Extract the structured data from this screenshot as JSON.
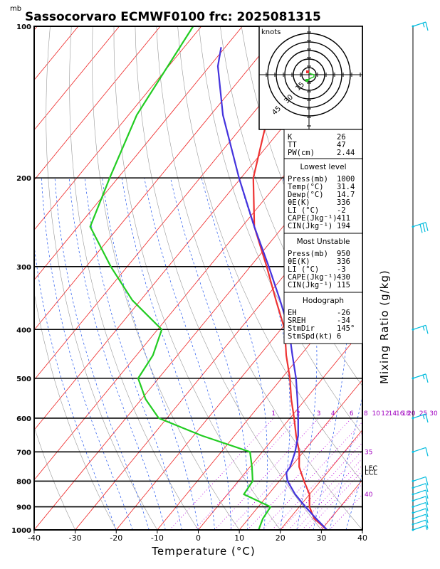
{
  "header": {
    "unit_label": "mb",
    "title": "Sassocorvaro ECMWF0100 frc: 2025081315"
  },
  "axes": {
    "xlabel": "Temperature (°C)",
    "xticks": [
      -40,
      -30,
      -20,
      -10,
      0,
      10,
      20,
      30,
      40
    ],
    "pressure_levels_ticks": [
      100,
      200,
      300,
      400,
      500,
      600,
      700,
      800,
      900,
      1000
    ],
    "mixing_ratio_label": "Mixing Ratio (g/kg)"
  },
  "mixing_ratio_lines": [
    {
      "label": "1",
      "t": -4
    },
    {
      "label": "2",
      "t": 2
    },
    {
      "label": "3",
      "t": 7
    },
    {
      "label": "4",
      "t": 10.5
    },
    {
      "label": "6",
      "t": 15
    },
    {
      "label": "8",
      "t": 18.5
    },
    {
      "label": "10",
      "t": 21
    },
    {
      "label": "12",
      "t": 23.2
    },
    {
      "label": "14",
      "t": 25
    },
    {
      "label": "16",
      "t": 26.8
    },
    {
      "label": "18",
      "t": 28.3
    },
    {
      "label": "20",
      "t": 29.6
    },
    {
      "label": "25",
      "t": 32.5
    },
    {
      "label": "30",
      "t": 35
    }
  ],
  "pseudo_adiabat_labels": [
    {
      "label": "35",
      "p": 700
    },
    {
      "label": "40",
      "p": 850
    }
  ],
  "lcl_labels": [
    {
      "label": "LFC",
      "p": 755
    },
    {
      "label": "LCL",
      "p": 770
    }
  ],
  "hodograph": {
    "units_label": "knots",
    "ring_labels": [
      "15",
      "30",
      "45"
    ]
  },
  "indices": {
    "top": [
      {
        "name": "K",
        "value": "26"
      },
      {
        "name": "TT",
        "value": "47"
      },
      {
        "name": "PW(cm)",
        "value": "2.44"
      }
    ],
    "lowest_level": {
      "header": "Lowest level",
      "rows": [
        {
          "name": "Press(mb)",
          "value": "1000"
        },
        {
          "name": "Temp(°C)",
          "value": "31.4"
        },
        {
          "name": "Dewp(°C)",
          "value": "14.7"
        },
        {
          "name": "θE(K)",
          "value": "336"
        },
        {
          "name": "LI (°C)",
          "value": "-2"
        },
        {
          "name": "CAPE(Jkg⁻¹)",
          "value": "411"
        },
        {
          "name": "CIN(Jkg⁻¹)",
          "value": "194"
        }
      ]
    },
    "most_unstable": {
      "header": "Most Unstable",
      "rows": [
        {
          "name": "Press(mb)",
          "value": "950"
        },
        {
          "name": "θE(K)",
          "value": "336"
        },
        {
          "name": "LI (°C)",
          "value": "-3"
        },
        {
          "name": "CAPE(Jkg⁻¹)",
          "value": "430"
        },
        {
          "name": "CIN(Jkg⁻¹)",
          "value": "115"
        }
      ]
    },
    "hodograph_block": {
      "header": "Hodograph",
      "rows": [
        {
          "name": "EH",
          "value": "-26"
        },
        {
          "name": "SREH",
          "value": "-34"
        },
        {
          "name": "StmDir",
          "value": "145°"
        },
        {
          "name": "StmSpd(kt)",
          "value": "6"
        }
      ]
    }
  },
  "colors": {
    "temperature": "#ee3333",
    "dewpoint": "#22cc22",
    "parcel": "#4433dd",
    "isotherm": "#ee2222",
    "dry_adiabat": "#999999",
    "moist_adiabat": "#2255ee",
    "mixing": "#bb00dd",
    "wind_barb": "#00bbdd"
  },
  "chart_data": {
    "type": "line",
    "title": "Sassocorvaro ECMWF0100 frc: 2025081315",
    "xlabel": "Temperature (°C)",
    "ylabel": "mb",
    "xlim": [
      -40,
      40
    ],
    "ylim": [
      1000,
      100
    ],
    "y_scale": "log",
    "skewed": true,
    "series": [],
    "profiles": {
      "temperature": [
        {
          "p": 1000,
          "t": 31.4
        },
        {
          "p": 950,
          "t": 26
        },
        {
          "p": 900,
          "t": 22.5
        },
        {
          "p": 850,
          "t": 20
        },
        {
          "p": 800,
          "t": 16
        },
        {
          "p": 750,
          "t": 12
        },
        {
          "p": 700,
          "t": 9
        },
        {
          "p": 650,
          "t": 5
        },
        {
          "p": 600,
          "t": 1
        },
        {
          "p": 550,
          "t": -3.5
        },
        {
          "p": 500,
          "t": -8
        },
        {
          "p": 450,
          "t": -13.5
        },
        {
          "p": 400,
          "t": -19
        },
        {
          "p": 350,
          "t": -27
        },
        {
          "p": 300,
          "t": -36
        },
        {
          "p": 250,
          "t": -47
        },
        {
          "p": 200,
          "t": -57
        },
        {
          "p": 150,
          "t": -66
        },
        {
          "p": 100,
          "t": -76
        }
      ],
      "dewpoint": [
        {
          "p": 1000,
          "t": 14.7
        },
        {
          "p": 950,
          "t": 13.5
        },
        {
          "p": 900,
          "t": 13
        },
        {
          "p": 850,
          "t": 4
        },
        {
          "p": 800,
          "t": 3.5
        },
        {
          "p": 750,
          "t": 0.5
        },
        {
          "p": 700,
          "t": -3
        },
        {
          "p": 650,
          "t": -18
        },
        {
          "p": 600,
          "t": -32
        },
        {
          "p": 550,
          "t": -39
        },
        {
          "p": 500,
          "t": -45
        },
        {
          "p": 450,
          "t": -46
        },
        {
          "p": 400,
          "t": -49
        },
        {
          "p": 350,
          "t": -62
        },
        {
          "p": 300,
          "t": -74
        },
        {
          "p": 250,
          "t": -87
        },
        {
          "p": 200,
          "t": -92
        },
        {
          "p": 150,
          "t": -98
        },
        {
          "p": 100,
          "t": -102
        }
      ],
      "parcel": [
        {
          "p": 1000,
          "t": 31.4
        },
        {
          "p": 950,
          "t": 26.5
        },
        {
          "p": 900,
          "t": 21.5
        },
        {
          "p": 850,
          "t": 16.5
        },
        {
          "p": 800,
          "t": 12
        },
        {
          "p": 770,
          "t": 10
        },
        {
          "p": 750,
          "t": 9.8
        },
        {
          "p": 700,
          "t": 8
        },
        {
          "p": 650,
          "t": 5.5
        },
        {
          "p": 600,
          "t": 2
        },
        {
          "p": 550,
          "t": -2
        },
        {
          "p": 500,
          "t": -6.5
        },
        {
          "p": 450,
          "t": -12
        },
        {
          "p": 400,
          "t": -18
        },
        {
          "p": 350,
          "t": -26
        },
        {
          "p": 300,
          "t": -35.5
        },
        {
          "p": 250,
          "t": -47
        },
        {
          "p": 200,
          "t": -60.5
        },
        {
          "p": 150,
          "t": -77
        },
        {
          "p": 120,
          "t": -88
        },
        {
          "p": 110,
          "t": -91
        }
      ]
    },
    "wind_barbs": [
      {
        "p": 1000,
        "spd": 5
      },
      {
        "p": 975,
        "spd": 10
      },
      {
        "p": 950,
        "spd": 10
      },
      {
        "p": 925,
        "spd": 10
      },
      {
        "p": 900,
        "spd": 10
      },
      {
        "p": 875,
        "spd": 10
      },
      {
        "p": 850,
        "spd": 10
      },
      {
        "p": 825,
        "spd": 10
      },
      {
        "p": 800,
        "spd": 10
      },
      {
        "p": 700,
        "spd": 10
      },
      {
        "p": 600,
        "spd": 15
      },
      {
        "p": 500,
        "spd": 15
      },
      {
        "p": 400,
        "spd": 15
      },
      {
        "p": 250,
        "spd": 30
      },
      {
        "p": 100,
        "spd": 15
      }
    ]
  }
}
